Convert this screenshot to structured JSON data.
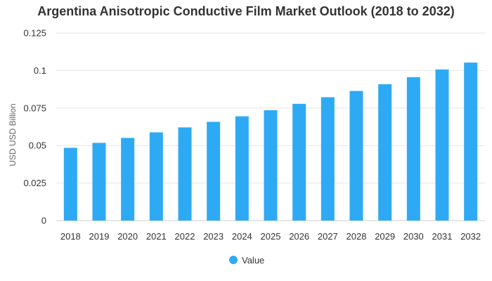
{
  "chart_data": {
    "type": "bar",
    "title": "Argentina Anisotropic Conductive Film Market Outlook (2018 to 2032)",
    "xlabel": "",
    "ylabel": "USD USD Billion",
    "categories": [
      "2018",
      "2019",
      "2020",
      "2021",
      "2022",
      "2023",
      "2024",
      "2025",
      "2026",
      "2027",
      "2028",
      "2029",
      "2030",
      "2031",
      "2032"
    ],
    "series": [
      {
        "name": "Value",
        "color": "#2eaaf5",
        "values": [
          0.0485,
          0.0518,
          0.0551,
          0.0588,
          0.0621,
          0.0658,
          0.0695,
          0.0736,
          0.0778,
          0.0822,
          0.0864,
          0.0909,
          0.0956,
          0.1007,
          0.1053
        ]
      }
    ],
    "ylim": [
      0,
      0.125
    ],
    "yticks": [
      0,
      0.025,
      0.05,
      0.075,
      0.1,
      0.125
    ],
    "ytick_labels": [
      "0",
      "0.025",
      "0.05",
      "0.075",
      "0.1",
      "0.125"
    ],
    "grid": true,
    "legend_position": "bottom"
  }
}
